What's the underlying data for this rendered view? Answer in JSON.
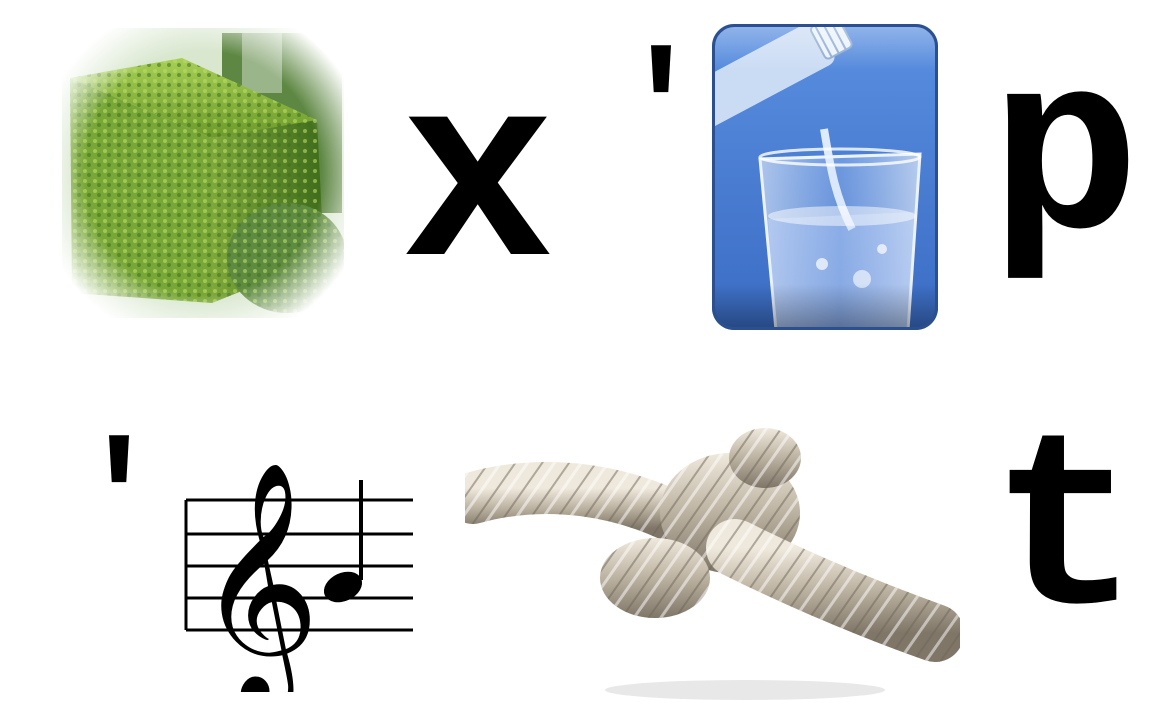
{
  "puzzle": {
    "row1": {
      "image1": "hedge",
      "letter1": "x",
      "apostrophe": "'",
      "image2": "pouring-water-glass",
      "letter2": "p"
    },
    "row2": {
      "apostrophe": "'",
      "image1": "treble-clef-staff-note",
      "image2": "rope-knot",
      "letter1": "t"
    }
  }
}
